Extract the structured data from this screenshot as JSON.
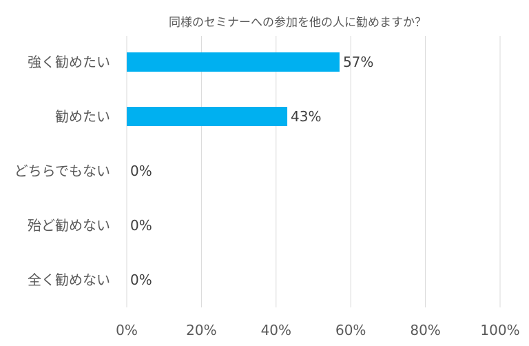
{
  "chart_data": {
    "type": "bar",
    "orientation": "horizontal",
    "title": "同様のセミナーへの参加を他の人に勧めますか？",
    "categories": [
      "強く勧めたい",
      "勧めたい",
      "どちらでもない",
      "殆ど勧めない",
      "全く勧めない"
    ],
    "values": [
      57,
      43,
      0,
      0,
      0
    ],
    "data_labels": [
      "57%",
      "43%",
      "0%",
      "0%",
      "0%"
    ],
    "xlim": [
      0,
      100
    ],
    "xticks": [
      0,
      20,
      40,
      60,
      80,
      100
    ],
    "xtick_labels": [
      "0%",
      "20%",
      "40%",
      "60%",
      "80%",
      "100%"
    ],
    "grid": true,
    "colors": {
      "bar": "#00b0f0",
      "grid": "#d9d9d9",
      "text": "#595959"
    }
  }
}
